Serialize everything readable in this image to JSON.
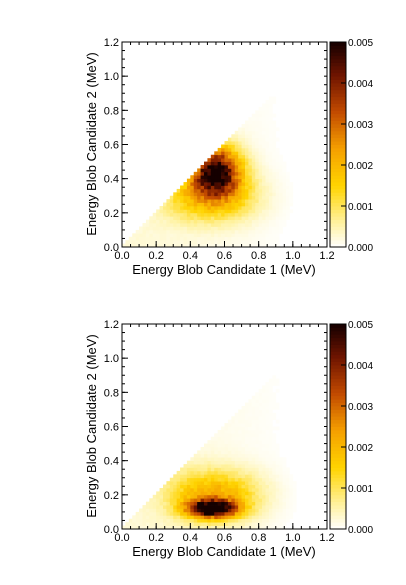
{
  "chart_data": [
    {
      "type": "heatmap",
      "title": "",
      "xlabel": "Energy Blob Candidate 1 (MeV)",
      "ylabel": "Energy Blob Candidate 2 (MeV)",
      "xlim": [
        0,
        1.2
      ],
      "ylim": [
        0,
        1.2
      ],
      "x_ticks": [
        "0.0",
        "0.2",
        "0.4",
        "0.6",
        "0.8",
        "1.0",
        "1.2"
      ],
      "y_ticks": [
        "0.0",
        "0.2",
        "0.4",
        "0.6",
        "0.8",
        "1.0",
        "1.2"
      ],
      "colorbar_ticks": [
        "0.000",
        "0.001",
        "0.002",
        "0.003",
        "0.004",
        "0.005"
      ],
      "zlim": [
        0,
        0.005
      ],
      "bins": 60,
      "region": "y <= x (lower triangle, thin band to ~1.05 MeV)",
      "hotspots": [
        {
          "x": 0.55,
          "y": 0.45,
          "z": 0.0046
        },
        {
          "x": 0.42,
          "y": 0.3,
          "z": 0.0012
        },
        {
          "x": 0.62,
          "y": 0.3,
          "z": 0.0012
        }
      ]
    },
    {
      "type": "heatmap",
      "title": "",
      "xlabel": "Energy Blob Candidate 1 (MeV)",
      "ylabel": "Energy Blob Candidate 2 (MeV)",
      "xlim": [
        0,
        1.2
      ],
      "ylim": [
        0,
        1.2
      ],
      "x_ticks": [
        "0.0",
        "0.2",
        "0.4",
        "0.6",
        "0.8",
        "1.0",
        "1.2"
      ],
      "y_ticks": [
        "0.0",
        "0.2",
        "0.4",
        "0.6",
        "0.8",
        "1.0",
        "1.2"
      ],
      "colorbar_ticks": [
        "0.000",
        "0.001",
        "0.002",
        "0.003",
        "0.004",
        "0.005"
      ],
      "zlim": [
        0,
        0.005
      ],
      "bins": 60,
      "region": "y <= x (lower triangle, thin band to ~1.05 MeV)",
      "hotspots": [
        {
          "x": 0.53,
          "y": 0.12,
          "z": 0.0052
        },
        {
          "x": 0.45,
          "y": 0.2,
          "z": 0.0014
        },
        {
          "x": 0.65,
          "y": 0.2,
          "z": 0.0012
        }
      ]
    }
  ],
  "colors": {
    "low": "#ffffff",
    "mid1": "#fff2a0",
    "mid2": "#ffd400",
    "mid3": "#f5a000",
    "mid4": "#c24a00",
    "mid5": "#6e1400",
    "high": "#150000"
  }
}
